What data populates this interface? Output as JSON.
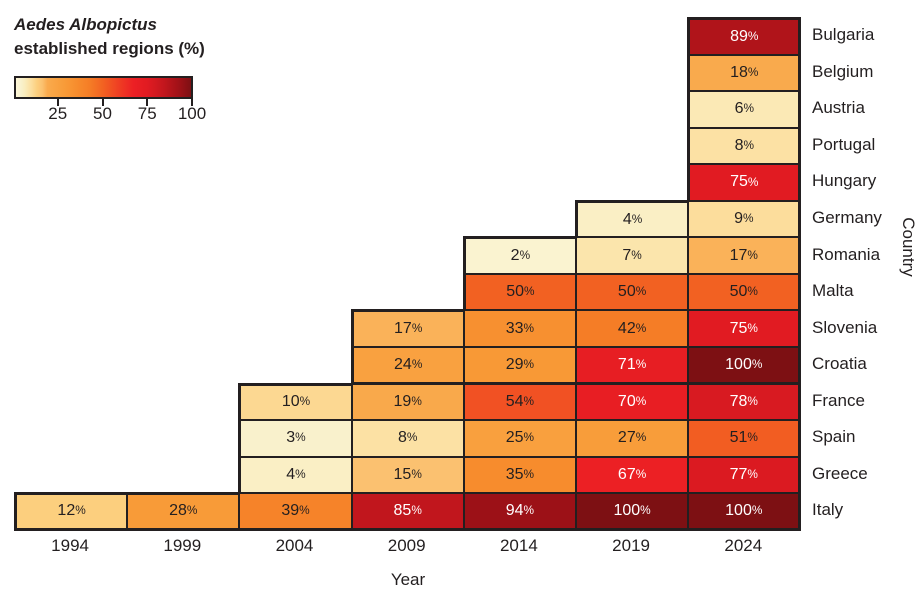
{
  "legend": {
    "title_line1": "Aedes Albopictus",
    "title_line2": "established regions (%)",
    "tick_labels": [
      "25",
      "50",
      "75",
      "100"
    ],
    "tick_values": [
      25,
      50,
      75,
      100
    ]
  },
  "chart_data": {
    "type": "heatmap",
    "title": "Aedes Albopictus established regions (%)",
    "xlabel": "Year",
    "ylabel": "Country",
    "years": [
      "1994",
      "1999",
      "2004",
      "2009",
      "2014",
      "2019",
      "2024"
    ],
    "value_suffix": "%",
    "value_range": [
      0,
      100
    ],
    "legend_position": "top-left",
    "series": [
      {
        "country": "Bulgaria",
        "values": [
          null,
          null,
          null,
          null,
          null,
          null,
          89
        ]
      },
      {
        "country": "Belgium",
        "values": [
          null,
          null,
          null,
          null,
          null,
          null,
          18
        ]
      },
      {
        "country": "Austria",
        "values": [
          null,
          null,
          null,
          null,
          null,
          null,
          6
        ]
      },
      {
        "country": "Portugal",
        "values": [
          null,
          null,
          null,
          null,
          null,
          null,
          8
        ]
      },
      {
        "country": "Hungary",
        "values": [
          null,
          null,
          null,
          null,
          null,
          null,
          75
        ]
      },
      {
        "country": "Germany",
        "values": [
          null,
          null,
          null,
          null,
          null,
          4,
          9
        ]
      },
      {
        "country": "Romania",
        "values": [
          null,
          null,
          null,
          null,
          2,
          7,
          17
        ]
      },
      {
        "country": "Malta",
        "values": [
          null,
          null,
          null,
          null,
          50,
          50,
          50
        ]
      },
      {
        "country": "Slovenia",
        "values": [
          null,
          null,
          null,
          17,
          33,
          42,
          75
        ]
      },
      {
        "country": "Croatia",
        "values": [
          null,
          null,
          null,
          24,
          29,
          71,
          100
        ]
      },
      {
        "country": "France",
        "values": [
          null,
          null,
          10,
          19,
          54,
          70,
          78
        ]
      },
      {
        "country": "Spain",
        "values": [
          null,
          null,
          3,
          8,
          25,
          27,
          51
        ]
      },
      {
        "country": "Greece",
        "values": [
          null,
          null,
          4,
          15,
          35,
          67,
          77
        ]
      },
      {
        "country": "Italy",
        "values": [
          12,
          28,
          39,
          85,
          94,
          100,
          100
        ]
      }
    ],
    "colorscale": [
      [
        0,
        "#FDF6D8"
      ],
      [
        3,
        "#F9F1CC"
      ],
      [
        5,
        "#FAEDBE"
      ],
      [
        7,
        "#FBE5AC"
      ],
      [
        9,
        "#FCDD9C"
      ],
      [
        12,
        "#FCCF7E"
      ],
      [
        15,
        "#FBC170"
      ],
      [
        18,
        "#F9AA4D"
      ],
      [
        22,
        "#F9A444"
      ],
      [
        28,
        "#F89B38"
      ],
      [
        35,
        "#F78C2D"
      ],
      [
        42,
        "#F57D26"
      ],
      [
        50,
        "#F26122"
      ],
      [
        58,
        "#EF4123"
      ],
      [
        67,
        "#EC2024"
      ],
      [
        75,
        "#E11B22"
      ],
      [
        80,
        "#D21920"
      ],
      [
        85,
        "#C1161D"
      ],
      [
        90,
        "#AC1319"
      ],
      [
        94,
        "#9C1117"
      ],
      [
        100,
        "#7D1013"
      ]
    ]
  },
  "colors": {
    "border": "#231F20",
    "text_dark": "#231F20",
    "text_light": "#FFFFFF",
    "background": "#FFFFFF"
  }
}
